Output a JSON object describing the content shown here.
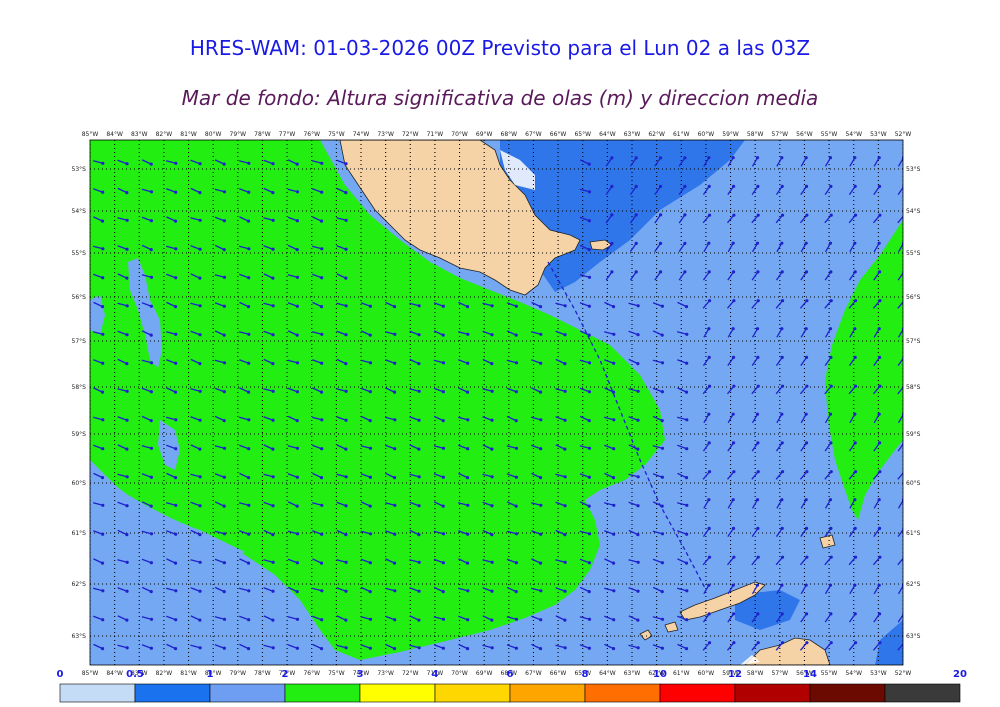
{
  "header": {
    "title": "HRES-WAM: 01-03-2026 00Z Previsto para el Lun 02 a las 03Z",
    "subtitle": "Mar de fondo: Altura significativa de olas (m) y direccion media"
  },
  "map": {
    "lon_labels": [
      "85°W",
      "84°W",
      "83°W",
      "82°W",
      "81°W",
      "80°W",
      "79°W",
      "78°W",
      "77°W",
      "76°W",
      "75°W",
      "74°W",
      "73°W",
      "72°W",
      "71°W",
      "70°W",
      "69°W",
      "68°W",
      "67°W",
      "66°W",
      "65°W",
      "64°W",
      "63°W",
      "62°W",
      "61°W",
      "60°W",
      "59°W",
      "58°W",
      "57°W",
      "56°W",
      "55°W",
      "54°W",
      "53°W",
      "52°W"
    ],
    "lat_labels": [
      "53°S",
      "54°S",
      "55°S",
      "56°S",
      "57°S",
      "58°S",
      "59°S",
      "60°S",
      "61°S",
      "62°S",
      "63°S"
    ],
    "colors": {
      "green": "#22ee11",
      "light_blue": "#75a8f3",
      "mid_blue": "#2f76ea",
      "land": "#f5d3a6",
      "arrow": "#1f22cc"
    }
  },
  "colorbar": {
    "labels": [
      "0",
      "0.5",
      "1",
      "2",
      "3",
      "4",
      "6",
      "8",
      "10",
      "12",
      "14",
      "20"
    ],
    "colors": [
      "#c5dcf6",
      "#1a72ee",
      "#6d9ef2",
      "#22ee11",
      "#ffff00",
      "#ffd700",
      "#ffa500",
      "#ff6e00",
      "#ff0000",
      "#b00000",
      "#6b0a00",
      "#3a3a3a"
    ]
  }
}
